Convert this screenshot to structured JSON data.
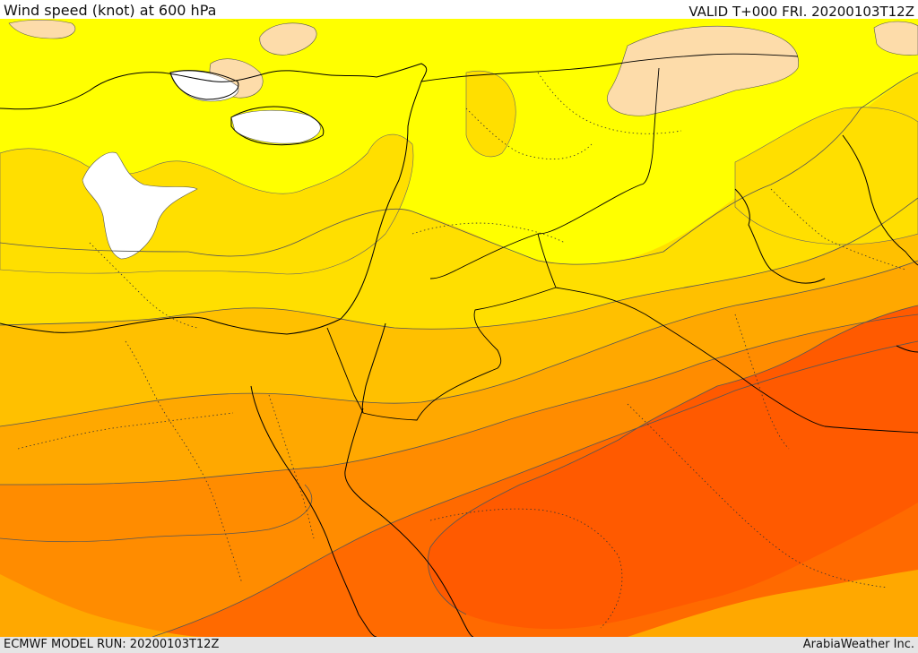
{
  "header": {
    "title": "Wind speed (knot) at 600 hPa",
    "valid_time": "VALID T+000 FRI. 20200103T12Z"
  },
  "footer": {
    "model_run": "ECMWF MODEL RUN: 20200103T12Z",
    "credit": "ArabiaWeather Inc."
  },
  "colors": {
    "white": "#ffffff",
    "peach": "#fddcaa",
    "yellow": "#ffff00",
    "gold": "#ffdf00",
    "amber": "#ffc000",
    "orange_light": "#ffa800",
    "orange": "#ff8c00",
    "orange_dark": "#ff6a00",
    "red_orange": "#ff5a00",
    "coast": "#000000",
    "contour": "#555555"
  }
}
